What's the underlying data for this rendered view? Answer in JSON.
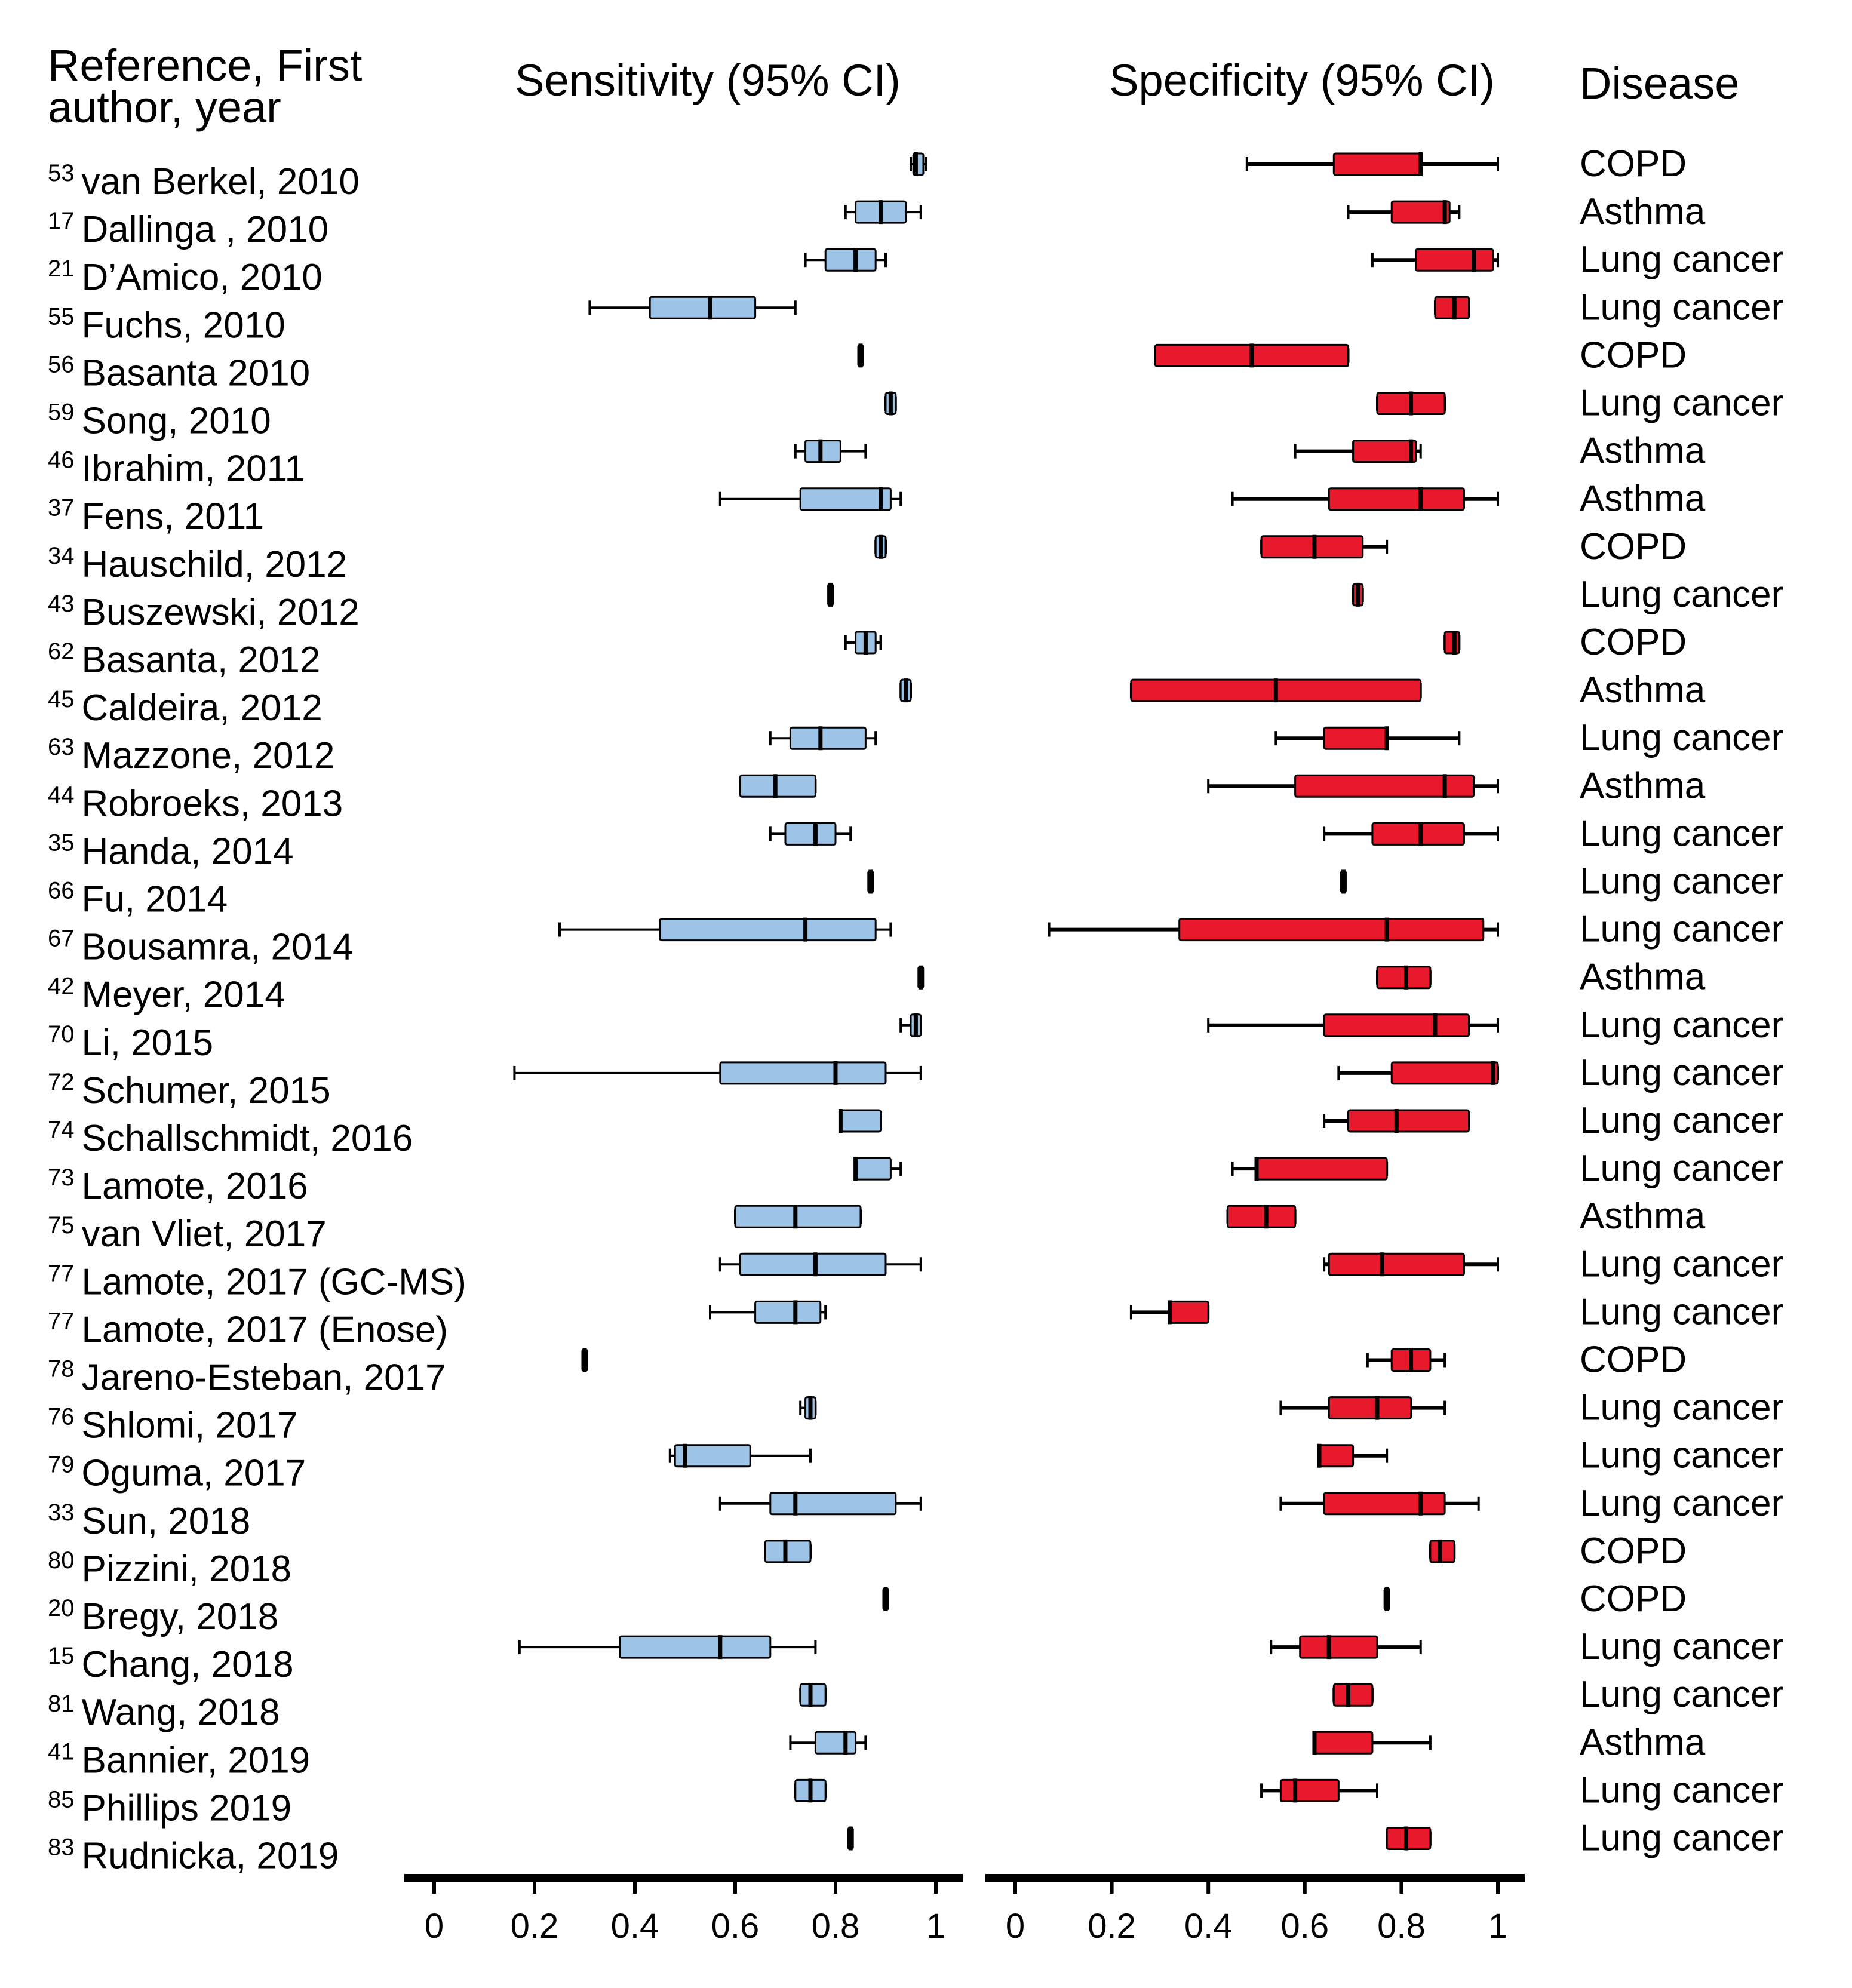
{
  "chart_data": {
    "type": "box",
    "headers": {
      "reference": [
        "Reference, First",
        "author, year"
      ],
      "sensitivity": "Sensitivity (95% CI)",
      "specificity": "Specificity (95% CI)",
      "disease": "Disease"
    },
    "xlim": [
      0,
      1
    ],
    "ticks": [
      0,
      0.2,
      0.4,
      0.6,
      0.8,
      1
    ],
    "tick_labels": [
      "0",
      "0.2",
      "0.4",
      "0.6",
      "0.8",
      "1"
    ],
    "colors": {
      "sensitivity": "#9dc3e6",
      "specificity": "#e8192c"
    },
    "rows": [
      {
        "ref": "53",
        "name": "van Berkel, 2010",
        "disease": "COPD",
        "sens": {
          "wlo": 0.95,
          "q1": 0.955,
          "med": 0.96,
          "q3": 0.975,
          "whi": 0.98
        },
        "spec": {
          "wlo": 0.48,
          "q1": 0.66,
          "med": 0.84,
          "q3": 0.84,
          "whi": 1.0
        }
      },
      {
        "ref": "17",
        "name": "Dallinga , 2010",
        "disease": "Asthma",
        "sens": {
          "wlo": 0.82,
          "q1": 0.84,
          "med": 0.89,
          "q3": 0.94,
          "whi": 0.97
        },
        "spec": {
          "wlo": 0.69,
          "q1": 0.78,
          "med": 0.89,
          "q3": 0.9,
          "whi": 0.92
        }
      },
      {
        "ref": "21",
        "name": "D’Amico, 2010",
        "disease": "Lung cancer",
        "sens": {
          "wlo": 0.74,
          "q1": 0.78,
          "med": 0.84,
          "q3": 0.88,
          "whi": 0.9
        },
        "spec": {
          "wlo": 0.74,
          "q1": 0.83,
          "med": 0.95,
          "q3": 0.99,
          "whi": 1.0
        }
      },
      {
        "ref": "55",
        "name": "Fuchs, 2010",
        "disease": "Lung cancer",
        "sens": {
          "wlo": 0.31,
          "q1": 0.43,
          "med": 0.55,
          "q3": 0.64,
          "whi": 0.72
        },
        "spec": {
          "wlo": 0.87,
          "q1": 0.87,
          "med": 0.91,
          "q3": 0.94,
          "whi": 0.94
        }
      },
      {
        "ref": "56",
        "name": "Basanta 2010",
        "disease": "COPD",
        "sens": {
          "wlo": 0.85,
          "q1": 0.85,
          "med": 0.85,
          "q3": 0.85,
          "whi": 0.85
        },
        "spec": {
          "wlo": 0.29,
          "q1": 0.29,
          "med": 0.49,
          "q3": 0.69,
          "whi": 0.69
        }
      },
      {
        "ref": "59",
        "name": "Song, 2010",
        "disease": "Lung cancer",
        "sens": {
          "wlo": 0.9,
          "q1": 0.9,
          "med": 0.91,
          "q3": 0.92,
          "whi": 0.92
        },
        "spec": {
          "wlo": 0.75,
          "q1": 0.75,
          "med": 0.82,
          "q3": 0.89,
          "whi": 0.89
        }
      },
      {
        "ref": "46",
        "name": "Ibrahim, 2011",
        "disease": "Asthma",
        "sens": {
          "wlo": 0.72,
          "q1": 0.74,
          "med": 0.77,
          "q3": 0.81,
          "whi": 0.86
        },
        "spec": {
          "wlo": 0.58,
          "q1": 0.7,
          "med": 0.82,
          "q3": 0.83,
          "whi": 0.84
        }
      },
      {
        "ref": "37",
        "name": "Fens, 2011",
        "disease": "Asthma",
        "sens": {
          "wlo": 0.57,
          "q1": 0.73,
          "med": 0.89,
          "q3": 0.91,
          "whi": 0.93
        },
        "spec": {
          "wlo": 0.45,
          "q1": 0.65,
          "med": 0.84,
          "q3": 0.93,
          "whi": 1.0
        }
      },
      {
        "ref": "34",
        "name": "Hauschild, 2012",
        "disease": "COPD",
        "sens": {
          "wlo": 0.88,
          "q1": 0.88,
          "med": 0.89,
          "q3": 0.9,
          "whi": 0.9
        },
        "spec": {
          "wlo": 0.51,
          "q1": 0.51,
          "med": 0.62,
          "q3": 0.72,
          "whi": 0.77
        }
      },
      {
        "ref": "43",
        "name": "Buszewski, 2012",
        "disease": "Lung cancer",
        "sens": {
          "wlo": 0.79,
          "q1": 0.79,
          "med": 0.79,
          "q3": 0.79,
          "whi": 0.79
        },
        "spec": {
          "wlo": 0.7,
          "q1": 0.7,
          "med": 0.71,
          "q3": 0.72,
          "whi": 0.72
        }
      },
      {
        "ref": "62",
        "name": "Basanta, 2012",
        "disease": "COPD",
        "sens": {
          "wlo": 0.82,
          "q1": 0.84,
          "med": 0.86,
          "q3": 0.88,
          "whi": 0.89
        },
        "spec": {
          "wlo": 0.89,
          "q1": 0.89,
          "med": 0.91,
          "q3": 0.92,
          "whi": 0.92
        }
      },
      {
        "ref": "45",
        "name": "Caldeira, 2012",
        "disease": "Asthma",
        "sens": {
          "wlo": 0.93,
          "q1": 0.93,
          "med": 0.94,
          "q3": 0.95,
          "whi": 0.95
        },
        "spec": {
          "wlo": 0.24,
          "q1": 0.24,
          "med": 0.54,
          "q3": 0.84,
          "whi": 0.84
        }
      },
      {
        "ref": "63",
        "name": "Mazzone,  2012",
        "disease": "Lung cancer",
        "sens": {
          "wlo": 0.67,
          "q1": 0.71,
          "med": 0.77,
          "q3": 0.86,
          "whi": 0.88
        },
        "spec": {
          "wlo": 0.54,
          "q1": 0.64,
          "med": 0.77,
          "q3": 0.77,
          "whi": 0.92
        }
      },
      {
        "ref": "44",
        "name": "Robroeks, 2013",
        "disease": "Asthma",
        "sens": {
          "wlo": 0.61,
          "q1": 0.61,
          "med": 0.68,
          "q3": 0.76,
          "whi": 0.76
        },
        "spec": {
          "wlo": 0.4,
          "q1": 0.58,
          "med": 0.89,
          "q3": 0.95,
          "whi": 1.0
        }
      },
      {
        "ref": "35",
        "name": "Handa, 2014",
        "disease": "Lung cancer",
        "sens": {
          "wlo": 0.67,
          "q1": 0.7,
          "med": 0.76,
          "q3": 0.8,
          "whi": 0.83
        },
        "spec": {
          "wlo": 0.64,
          "q1": 0.74,
          "med": 0.84,
          "q3": 0.93,
          "whi": 1.0
        }
      },
      {
        "ref": "66",
        "name": "Fu, 2014",
        "disease": "Lung cancer",
        "sens": {
          "wlo": 0.87,
          "q1": 0.87,
          "med": 0.87,
          "q3": 0.87,
          "whi": 0.87
        },
        "spec": {
          "wlo": 0.68,
          "q1": 0.68,
          "med": 0.68,
          "q3": 0.68,
          "whi": 0.68
        }
      },
      {
        "ref": "67",
        "name": "Bousamra, 2014",
        "disease": "Lung cancer",
        "sens": {
          "wlo": 0.25,
          "q1": 0.45,
          "med": 0.74,
          "q3": 0.88,
          "whi": 0.91
        },
        "spec": {
          "wlo": 0.07,
          "q1": 0.34,
          "med": 0.77,
          "q3": 0.97,
          "whi": 1.0
        }
      },
      {
        "ref": "42",
        "name": "Meyer, 2014",
        "disease": "Asthma",
        "sens": {
          "wlo": 0.97,
          "q1": 0.97,
          "med": 0.97,
          "q3": 0.97,
          "whi": 0.97
        },
        "spec": {
          "wlo": 0.75,
          "q1": 0.75,
          "med": 0.81,
          "q3": 0.86,
          "whi": 0.86
        }
      },
      {
        "ref": "70",
        "name": "Li, 2015",
        "disease": "Lung cancer",
        "sens": {
          "wlo": 0.93,
          "q1": 0.95,
          "med": 0.96,
          "q3": 0.97,
          "whi": 0.97
        },
        "spec": {
          "wlo": 0.4,
          "q1": 0.64,
          "med": 0.87,
          "q3": 0.94,
          "whi": 1.0
        }
      },
      {
        "ref": "72",
        "name": "Schumer, 2015",
        "disease": "Lung cancer",
        "sens": {
          "wlo": 0.16,
          "q1": 0.57,
          "med": 0.8,
          "q3": 0.9,
          "whi": 0.97
        },
        "spec": {
          "wlo": 0.67,
          "q1": 0.78,
          "med": 0.99,
          "q3": 1.0,
          "whi": 1.0
        }
      },
      {
        "ref": "74",
        "name": "Schallschmidt, 2016",
        "disease": "Lung cancer",
        "sens": {
          "wlo": 0.81,
          "q1": 0.81,
          "med": 0.81,
          "q3": 0.89,
          "whi": 0.89
        },
        "spec": {
          "wlo": 0.64,
          "q1": 0.69,
          "med": 0.79,
          "q3": 0.94,
          "whi": 0.94
        }
      },
      {
        "ref": "73",
        "name": "Lamote, 2016",
        "disease": "Lung cancer",
        "sens": {
          "wlo": 0.84,
          "q1": 0.84,
          "med": 0.84,
          "q3": 0.91,
          "whi": 0.93
        },
        "spec": {
          "wlo": 0.45,
          "q1": 0.5,
          "med": 0.5,
          "q3": 0.77,
          "whi": 0.77
        }
      },
      {
        "ref": "75",
        "name": "van Vliet, 2017",
        "disease": "Asthma",
        "sens": {
          "wlo": 0.6,
          "q1": 0.6,
          "med": 0.72,
          "q3": 0.85,
          "whi": 0.85
        },
        "spec": {
          "wlo": 0.44,
          "q1": 0.44,
          "med": 0.52,
          "q3": 0.58,
          "whi": 0.58
        }
      },
      {
        "ref": "77",
        "name": "Lamote, 2017 (GC-MS)",
        "disease": "Lung cancer",
        "sens": {
          "wlo": 0.57,
          "q1": 0.61,
          "med": 0.76,
          "q3": 0.9,
          "whi": 0.97
        },
        "spec": {
          "wlo": 0.64,
          "q1": 0.65,
          "med": 0.76,
          "q3": 0.93,
          "whi": 1.0
        }
      },
      {
        "ref": "77",
        "name": "Lamote, 2017 (Enose)",
        "disease": "Lung cancer",
        "sens": {
          "wlo": 0.55,
          "q1": 0.64,
          "med": 0.72,
          "q3": 0.77,
          "whi": 0.78
        },
        "spec": {
          "wlo": 0.24,
          "q1": 0.32,
          "med": 0.32,
          "q3": 0.4,
          "whi": 0.4
        }
      },
      {
        "ref": "78",
        "name": "Jareno-Esteban, 2017",
        "disease": "COPD",
        "sens": {
          "wlo": 0.3,
          "q1": 0.3,
          "med": 0.3,
          "q3": 0.3,
          "whi": 0.3
        },
        "spec": {
          "wlo": 0.73,
          "q1": 0.78,
          "med": 0.82,
          "q3": 0.86,
          "whi": 0.89
        }
      },
      {
        "ref": "76",
        "name": "Shlomi, 2017",
        "disease": "Lung cancer",
        "sens": {
          "wlo": 0.73,
          "q1": 0.74,
          "med": 0.75,
          "q3": 0.76,
          "whi": 0.76
        },
        "spec": {
          "wlo": 0.55,
          "q1": 0.65,
          "med": 0.75,
          "q3": 0.82,
          "whi": 0.89
        }
      },
      {
        "ref": "79",
        "name": "Oguma,  2017",
        "disease": "Lung cancer",
        "sens": {
          "wlo": 0.47,
          "q1": 0.48,
          "med": 0.5,
          "q3": 0.63,
          "whi": 0.75
        },
        "spec": {
          "wlo": 0.63,
          "q1": 0.63,
          "med": 0.63,
          "q3": 0.7,
          "whi": 0.77
        }
      },
      {
        "ref": "33",
        "name": "Sun, 2018",
        "disease": "Lung cancer",
        "sens": {
          "wlo": 0.57,
          "q1": 0.67,
          "med": 0.72,
          "q3": 0.92,
          "whi": 0.97
        },
        "spec": {
          "wlo": 0.55,
          "q1": 0.64,
          "med": 0.84,
          "q3": 0.89,
          "whi": 0.96
        }
      },
      {
        "ref": "80",
        "name": "Pizzini,  2018",
        "disease": "COPD",
        "sens": {
          "wlo": 0.66,
          "q1": 0.66,
          "med": 0.7,
          "q3": 0.75,
          "whi": 0.75
        },
        "spec": {
          "wlo": 0.86,
          "q1": 0.86,
          "med": 0.88,
          "q3": 0.91,
          "whi": 0.91
        }
      },
      {
        "ref": "20",
        "name": "Bregy, 2018",
        "disease": "COPD",
        "sens": {
          "wlo": 0.9,
          "q1": 0.9,
          "med": 0.9,
          "q3": 0.9,
          "whi": 0.9
        },
        "spec": {
          "wlo": 0.77,
          "q1": 0.77,
          "med": 0.77,
          "q3": 0.77,
          "whi": 0.77
        }
      },
      {
        "ref": "15",
        "name": "Chang, 2018",
        "disease": "Lung cancer",
        "sens": {
          "wlo": 0.17,
          "q1": 0.37,
          "med": 0.57,
          "q3": 0.67,
          "whi": 0.76
        },
        "spec": {
          "wlo": 0.53,
          "q1": 0.59,
          "med": 0.65,
          "q3": 0.75,
          "whi": 0.84
        }
      },
      {
        "ref": "81",
        "name": "Wang, 2018",
        "disease": "Lung cancer",
        "sens": {
          "wlo": 0.73,
          "q1": 0.73,
          "med": 0.75,
          "q3": 0.78,
          "whi": 0.78
        },
        "spec": {
          "wlo": 0.66,
          "q1": 0.66,
          "med": 0.69,
          "q3": 0.74,
          "whi": 0.74
        }
      },
      {
        "ref": "41",
        "name": "Bannier, 2019",
        "disease": "Asthma",
        "sens": {
          "wlo": 0.71,
          "q1": 0.76,
          "med": 0.82,
          "q3": 0.84,
          "whi": 0.86
        },
        "spec": {
          "wlo": 0.62,
          "q1": 0.62,
          "med": 0.62,
          "q3": 0.74,
          "whi": 0.86
        }
      },
      {
        "ref": "85",
        "name": "Phillips 2019",
        "disease": "Lung cancer",
        "sens": {
          "wlo": 0.72,
          "q1": 0.72,
          "med": 0.75,
          "q3": 0.78,
          "whi": 0.78
        },
        "spec": {
          "wlo": 0.51,
          "q1": 0.55,
          "med": 0.58,
          "q3": 0.67,
          "whi": 0.75
        }
      },
      {
        "ref": "83",
        "name": "Rudnicka, 2019",
        "disease": "Lung cancer",
        "sens": {
          "wlo": 0.83,
          "q1": 0.83,
          "med": 0.83,
          "q3": 0.83,
          "whi": 0.83
        },
        "spec": {
          "wlo": 0.77,
          "q1": 0.77,
          "med": 0.81,
          "q3": 0.86,
          "whi": 0.86
        }
      }
    ]
  }
}
